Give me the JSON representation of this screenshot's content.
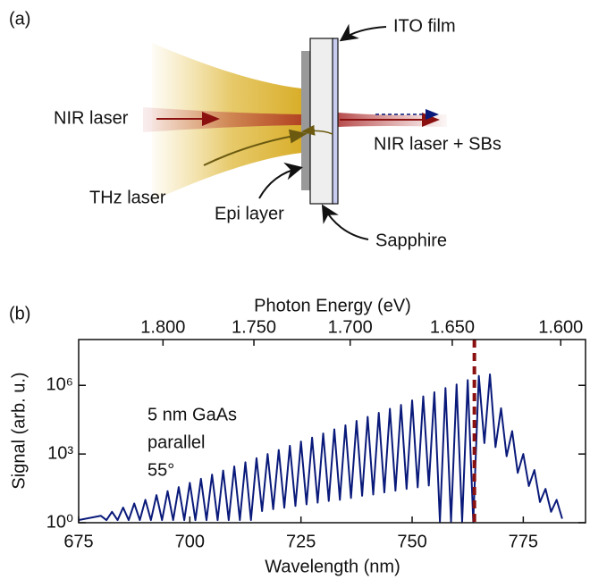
{
  "diagram": {
    "panel_label": "(a)",
    "ito": "ITO film",
    "nir_in": "NIR laser",
    "nir_out": "NIR laser + SBs",
    "thz": "THz laser",
    "epi": "Epi layer",
    "sapphire": "Sapphire"
  },
  "chart_data": {
    "type": "line",
    "panel_label": "(b)",
    "xlabel": "Wavelength (nm)",
    "ylabel": "Signal (arb. u.)",
    "x2label": "Photon Energy (eV)",
    "annotations": [
      "5 nm GaAs",
      "parallel",
      "55°"
    ],
    "color": "#0a1a7a",
    "x": [
      675,
      680,
      681.25,
      682.5,
      683.75,
      685,
      686.25,
      687.5,
      688.75,
      690,
      691.25,
      692.5,
      693.75,
      695,
      696.25,
      697.5,
      698.75,
      700,
      701.25,
      702.5,
      703.75,
      705,
      706.25,
      707.5,
      708.75,
      710,
      711.25,
      712.5,
      713.75,
      715,
      716.25,
      717.5,
      718.75,
      720,
      721.25,
      722.5,
      723.75,
      725,
      726.25,
      727.5,
      728.75,
      730,
      731.25,
      732.5,
      733.75,
      735,
      736.25,
      737.5,
      738.75,
      740,
      741.25,
      742.5,
      743.75,
      745,
      746.25,
      747.5,
      748.75,
      750,
      751.25,
      752.5,
      753.75,
      755,
      756.25,
      757.5,
      758.75,
      760,
      761.25,
      762.5,
      763.75,
      765,
      766.25,
      767.5,
      768.75,
      770,
      771.25,
      772.5,
      773.75,
      775,
      776.25,
      777.5,
      778.75,
      780,
      781.25,
      782.5,
      783.75
    ],
    "values": [
      1.3,
      2,
      1.3,
      3,
      1.3,
      4.6,
      1.3,
      6.9,
      1.3,
      10,
      1.3,
      16,
      1.3,
      24,
      1.3,
      36,
      1.3,
      55,
      1.3,
      83,
      1.3,
      126,
      1.3,
      190,
      1.3,
      288,
      1.3,
      437,
      1.3,
      660,
      3.2,
      1000,
      3.9,
      1500,
      4.5,
      2300,
      5.4,
      3500,
      6.3,
      5200,
      7.5,
      7900,
      8.9,
      12000,
      10,
      18000,
      12,
      28000,
      15,
      42000,
      17,
      63000,
      21,
      95000,
      25,
      140000,
      30,
      220000,
      35,
      330000,
      42,
      500000,
      1.1,
      760000,
      1.1,
      1100000,
      1.1,
      1700000,
      1.1,
      2600000,
      3000,
      3000000,
      2000,
      100000,
      800,
      10000,
      150,
      1000,
      40,
      200,
      8,
      30,
      3,
      10,
      1.5
    ],
    "xlim": [
      675,
      789
    ],
    "xticks": [
      675,
      700,
      725,
      750,
      775
    ],
    "ylim": [
      1,
      100000000
    ],
    "yscale": "log",
    "yticks": [
      {
        "value": 1,
        "label": "10⁰"
      },
      {
        "value": 1000,
        "label": "10³"
      },
      {
        "value": 1000000,
        "label": "10⁶"
      }
    ],
    "x2lim": [
      1.849,
      1.589
    ],
    "x2scale": "reciprocal",
    "x2ticks": [
      {
        "value": 1.8,
        "label": "1.800"
      },
      {
        "value": 1.75,
        "label": "1.750"
      },
      {
        "value": 1.7,
        "label": "1.700"
      },
      {
        "value": 1.65,
        "label": "1.650"
      },
      {
        "value": 1.6,
        "label": "1.600"
      }
    ],
    "vline": {
      "x": 764,
      "color": "#8b1010"
    }
  }
}
